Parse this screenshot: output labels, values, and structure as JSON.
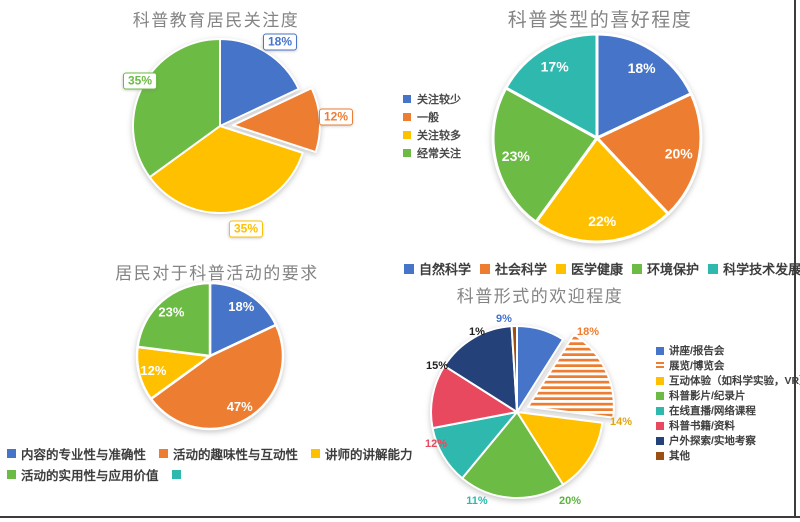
{
  "page": {
    "background": "#ffffff",
    "border_right_color": "#3c3c3c",
    "border_bottom_color": "#3c3c3c"
  },
  "chart_data": [
    {
      "type": "pie",
      "title": "科普教育居民关注度",
      "categories": [
        "关注较少",
        "一般",
        "关注较多",
        "经常关注"
      ],
      "values": [
        18,
        12,
        35,
        35
      ],
      "labels": [
        "18%",
        "12%",
        "35%",
        "35%"
      ],
      "colors": [
        "#4574C8",
        "#ED7D31",
        "#FFC000",
        "#6CBB45"
      ],
      "exploded_slice": "一般",
      "label_style": "boxed-outside",
      "legend_position": "right-of-chart",
      "legend_entries": [
        "关注较少",
        "一般",
        "关注较多",
        "经常关注"
      ]
    },
    {
      "type": "pie",
      "title": "科普类型的喜好程度",
      "categories": [
        "自然科学",
        "社会科学",
        "医学健康",
        "环境保护",
        "科学技术发展"
      ],
      "values": [
        18,
        20,
        22,
        23,
        17
      ],
      "labels": [
        "18%",
        "20%",
        "22%",
        "23%",
        "17%"
      ],
      "colors": [
        "#4574C8",
        "#ED7D31",
        "#FFC000",
        "#6CBB45",
        "#2FB8AE"
      ],
      "label_style": "inside-white",
      "legend_position": "bottom",
      "legend_entries": [
        "自然科学",
        "社会科学",
        "医学健康",
        "环境保护",
        "科学技术发展"
      ]
    },
    {
      "type": "pie",
      "title": "居民对于科普活动的要求",
      "categories": [
        "内容的专业性与准确性",
        "活动的趣味性与互动性",
        "讲师的讲解能力",
        "活动的实用性与应用价值"
      ],
      "values": [
        18,
        47,
        12,
        23
      ],
      "labels": [
        "18%",
        "47%",
        "12%",
        "23%"
      ],
      "colors": [
        "#4574C8",
        "#ED7D31",
        "#FFC000",
        "#6CBB45"
      ],
      "label_style": "inside-white",
      "legend_position": "bottom",
      "legend_entries": [
        "内容的专业性与准确性",
        "活动的趣味性与互动性",
        "讲师的讲解能力",
        "活动的实用性与应用价值",
        ""
      ],
      "legend_colors": [
        "#4574C8",
        "#ED7D31",
        "#FFC000",
        "#6CBB45",
        "#2FB8AE"
      ]
    },
    {
      "type": "pie",
      "title": "科普形式的欢迎程度",
      "categories": [
        "讲座/报告会",
        "展览/博览会",
        "互动体验（如科学实验，VR）",
        "科普影片/纪录片",
        "在线直播/网络课程",
        "科普书籍/资料",
        "户外探索/实地考察",
        "其他"
      ],
      "values": [
        9,
        18,
        14,
        20,
        11,
        12,
        15,
        1
      ],
      "labels": [
        "9%",
        "18%",
        "14%",
        "20%",
        "11%",
        "12%",
        "15%",
        "1%"
      ],
      "colors": [
        "#4574C8",
        "#ED7D31",
        "#FFC000",
        "#6CBB45",
        "#2FB8AE",
        "#E8495F",
        "#24417A",
        "#9C4F12"
      ],
      "label_colors": [
        "#4574C8",
        "#ED7D31",
        "#E2A50F",
        "#5CB33C",
        "#2FB8AE",
        "#E8495F",
        "#1f1f1f",
        "#1f1f1f"
      ],
      "exploded_slice": "展览/博览会",
      "striped_slice": "展览/博览会",
      "label_style": "outside-colored",
      "legend_position": "right-of-chart",
      "legend_entries": [
        "讲座/报告会",
        "展览/博览会",
        "互动体验（如科学实验，VR）",
        "科普影片/纪录片",
        "在线直播/网络课程",
        "科普书籍/资料",
        "户外探索/实地考察",
        "其他"
      ]
    }
  ]
}
